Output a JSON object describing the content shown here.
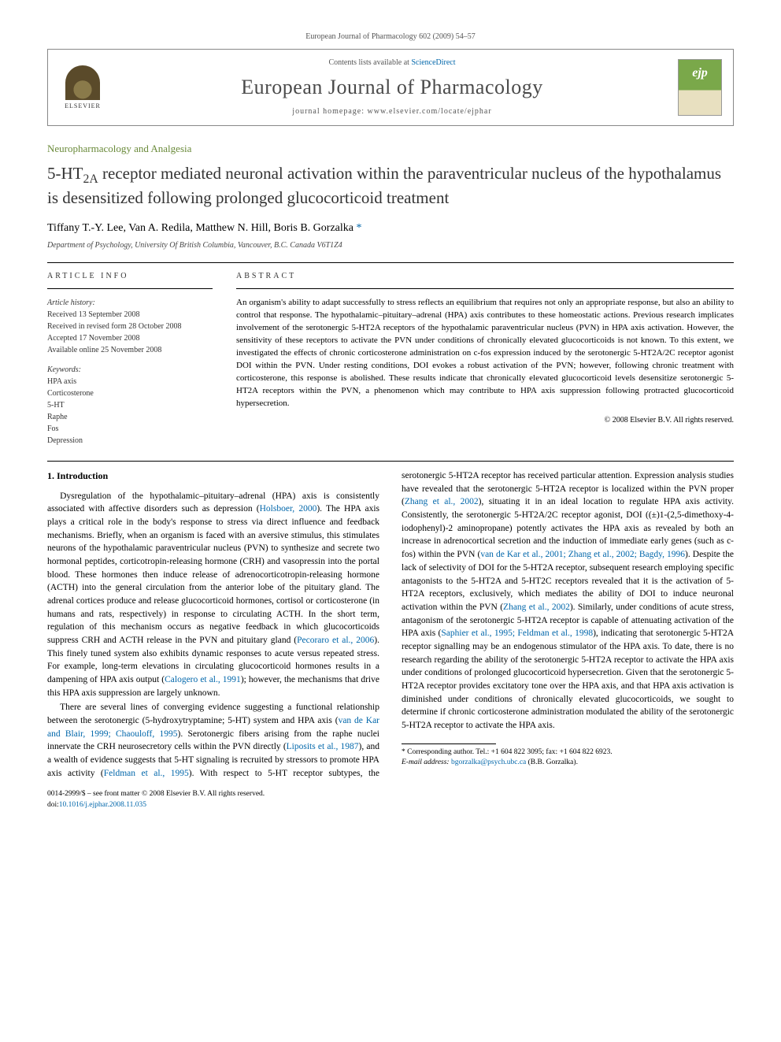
{
  "header": {
    "citation": "European Journal of Pharmacology 602 (2009) 54–57",
    "contents_prefix": "Contents lists available at ",
    "contents_link": "ScienceDirect",
    "journal_name": "European Journal of Pharmacology",
    "homepage_prefix": "journal homepage: ",
    "homepage": "www.elsevier.com/locate/ejphar",
    "elsevier_label": "ELSEVIER",
    "cover_badge": "ejp"
  },
  "section_label": "Neuropharmacology and Analgesia",
  "title": "5-HT2A receptor mediated neuronal activation within the paraventricular nucleus of the hypothalamus is desensitized following prolonged glucocorticoid treatment",
  "authors_html": "Tiffany T.-Y. Lee, Van A. Redila, Matthew N. Hill, Boris B. Gorzalka ",
  "corr_mark": "*",
  "affiliation": "Department of Psychology, University Of British Columbia, Vancouver, B.C. Canada V6T1Z4",
  "info": {
    "heading": "ARTICLE INFO",
    "history_label": "Article history:",
    "received": "Received 13 September 2008",
    "revised": "Received in revised form 28 October 2008",
    "accepted": "Accepted 17 November 2008",
    "online": "Available online 25 November 2008",
    "keywords_label": "Keywords:",
    "keywords": [
      "HPA axis",
      "Corticosterone",
      "5-HT",
      "Raphe",
      "Fos",
      "Depression"
    ]
  },
  "abstract": {
    "heading": "ABSTRACT",
    "text": "An organism's ability to adapt successfully to stress reflects an equilibrium that requires not only an appropriate response, but also an ability to control that response. The hypothalamic–pituitary–adrenal (HPA) axis contributes to these homeostatic actions. Previous research implicates involvement of the serotonergic 5-HT2A receptors of the hypothalamic paraventricular nucleus (PVN) in HPA axis activation. However, the sensitivity of these receptors to activate the PVN under conditions of chronically elevated glucocorticoids is not known. To this extent, we investigated the effects of chronic corticosterone administration on c-fos expression induced by the serotonergic 5-HT2A/2C receptor agonist DOI within the PVN. Under resting conditions, DOI evokes a robust activation of the PVN; however, following chronic treatment with corticosterone, this response is abolished. These results indicate that chronically elevated glucocorticoid levels desensitize serotonergic 5-HT2A receptors within the PVN, a phenomenon which may contribute to HPA axis suppression following protracted glucocorticoid hypersecretion.",
    "copyright": "© 2008 Elsevier B.V. All rights reserved."
  },
  "body": {
    "intro_heading": "1. Introduction",
    "p1a": "Dysregulation of the hypothalamic–pituitary–adrenal (HPA) axis is consistently associated with affective disorders such as depression (",
    "p1_link1": "Holsboer, 2000",
    "p1b": "). The HPA axis plays a critical role in the body's response to stress via direct influence and feedback mechanisms. Briefly, when an organism is faced with an aversive stimulus, this stimulates neurons of the hypothalamic paraventricular nucleus (PVN) to synthesize and secrete two hormonal peptides, corticotropin-releasing hormone (CRH) and vasopressin into the portal blood. These hormones then induce release of adrenocorticotropin-releasing hormone (ACTH) into the general circulation from the anterior lobe of the pituitary gland. The adrenal cortices produce and release glucocorticoid hormones, cortisol or corticosterone (in humans and rats, respectively) in response to circulating ACTH. In the short term, regulation of this mechanism occurs as negative feedback in which glucocorticoids suppress CRH and ACTH release in the PVN and pituitary gland (",
    "p1_link2": "Pecoraro et al., 2006",
    "p1c": "). This finely tuned system also exhibits dynamic responses to acute versus repeated stress. For example, long-term elevations in circulating glucocorticoid hormones results in a dampening of HPA axis output (",
    "p1_link3": "Calogero et al., 1991",
    "p1d": "); however, the mechanisms that drive this HPA axis suppression are largely unknown.",
    "p2a": "There are several lines of converging evidence suggesting a functional relationship between the serotonergic (5-hydroxytryptamine; 5-HT) system and HPA axis (",
    "p2_link1": "van de Kar and Blair, 1999; Chaouloff, 1995",
    "p2b": "). Serotonergic fibers arising from the raphe nuclei innervate the CRH neurosecretory cells within the PVN directly (",
    "p2_link2": "Liposits et al., 1987",
    "p2c": "), and a wealth of evidence suggests that 5-HT signaling is recruited by stressors to promote HPA axis activity (",
    "p2_link3": "Feldman et al., 1995",
    "p2d": "). With respect to 5-HT receptor subtypes, the serotonergic 5-HT2A receptor has received particular attention. Expression analysis studies have revealed that the serotonergic 5-HT2A receptor is localized within the PVN proper (",
    "p2_link4": "Zhang et al., 2002",
    "p2e": "), situating it in an ideal location to regulate HPA axis activity. Consistently, the serotonergic 5-HT2A/2C receptor agonist, DOI ((±)1-(2,5-dimethoxy-4-iodophenyl)-2 aminopropane) potently activates the HPA axis as revealed by both an increase in adrenocortical secretion and the induction of immediate early genes (such as c-fos) within the PVN (",
    "p2_link5": "van de Kar et al., 2001; Zhang et al., 2002; Bagdy, 1996",
    "p2f": "). Despite the lack of selectivity of DOI for the 5-HT2A receptor, subsequent research employing specific antagonists to the 5-HT2A and 5-HT2C receptors revealed that it is the activation of 5-HT2A receptors, exclusively, which mediates the ability of DOI to induce neuronal activation within the PVN (",
    "p2_link6": "Zhang et al., 2002",
    "p2g": "). Similarly, under conditions of acute stress, antagonism of the serotonergic 5-HT2A receptor is capable of attenuating activation of the HPA axis (",
    "p2_link7": "Saphier et al., 1995; Feldman et al., 1998",
    "p2h": "), indicating that serotonergic 5-HT2A receptor signalling may be an endogenous stimulator of the HPA axis. To date, there is no research regarding the ability of the serotonergic 5-HT2A receptor to activate the HPA axis under conditions of prolonged glucocorticoid hypersecretion. Given that the serotonergic 5-HT2A receptor provides excitatory tone over the HPA axis, and that HPA axis activation is diminished under conditions of chronically elevated glucocorticoids, we sought to determine if chronic corticosterone administration modulated the ability of the serotonergic 5-HT2A receptor to activate the HPA axis."
  },
  "footnote": {
    "corr": "* Corresponding author. Tel.: +1 604 822 3095; fax: +1 604 822 6923.",
    "email_label": "E-mail address: ",
    "email": "bgorzalka@psych.ubc.ca",
    "email_suffix": " (B.B. Gorzalka)."
  },
  "footer": {
    "left1": "0014-2999/$ – see front matter © 2008 Elsevier B.V. All rights reserved.",
    "left2_prefix": "doi:",
    "doi": "10.1016/j.ejphar.2008.11.035"
  }
}
